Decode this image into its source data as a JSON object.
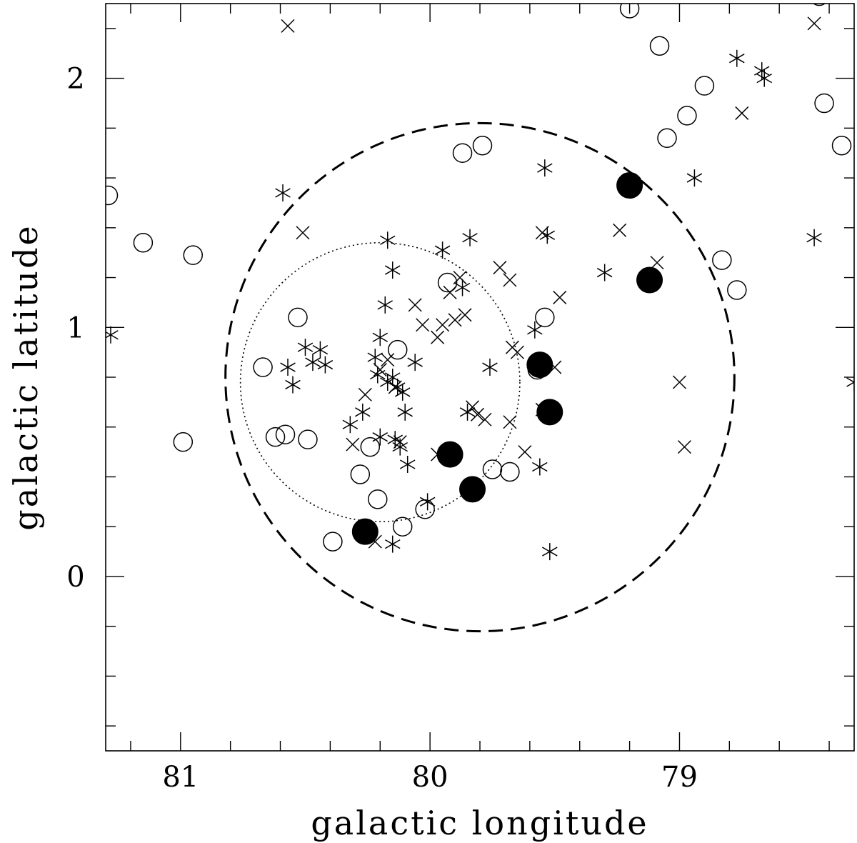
{
  "chart_data": {
    "type": "scatter",
    "xlabel": "galactic longitude",
    "ylabel": "galactic latitude",
    "xlim": [
      81.3,
      78.3
    ],
    "ylim": [
      -0.7,
      2.3
    ],
    "x_inverted": true,
    "grid": false,
    "legend": "none",
    "x_ticks": [
      {
        "value": 81,
        "label": "81"
      },
      {
        "value": 80,
        "label": "80"
      },
      {
        "value": 79,
        "label": "79"
      }
    ],
    "y_ticks": [
      {
        "value": 0,
        "label": "0"
      },
      {
        "value": 1,
        "label": "1"
      },
      {
        "value": 2,
        "label": "2"
      }
    ],
    "x_minor_step": 0.2,
    "y_minor_step": 0.2,
    "circles": [
      {
        "style": "dashed",
        "center": [
          79.8,
          0.8
        ],
        "radius_deg": 1.02
      },
      {
        "style": "dotted",
        "center": [
          80.2,
          0.78
        ],
        "radius_deg": 0.56
      }
    ],
    "series": [
      {
        "marker": "open-circle",
        "points": [
          [
            81.29,
            1.53
          ],
          [
            81.15,
            1.34
          ],
          [
            80.99,
            0.54
          ],
          [
            80.95,
            1.29
          ],
          [
            80.67,
            0.84
          ],
          [
            80.53,
            1.04
          ],
          [
            80.62,
            0.56
          ],
          [
            80.58,
            0.57
          ],
          [
            80.49,
            0.55
          ],
          [
            80.13,
            0.91
          ],
          [
            79.93,
            1.18
          ],
          [
            79.87,
            1.7
          ],
          [
            79.79,
            1.73
          ],
          [
            79.75,
            0.43
          ],
          [
            79.68,
            0.42
          ],
          [
            79.54,
            1.04
          ],
          [
            79.57,
            0.83
          ],
          [
            80.39,
            0.14
          ],
          [
            80.28,
            0.41
          ],
          [
            80.21,
            0.31
          ],
          [
            80.24,
            0.52
          ],
          [
            80.11,
            0.2
          ],
          [
            80.02,
            0.27
          ],
          [
            79.2,
            2.28
          ],
          [
            79.08,
            2.13
          ],
          [
            79.05,
            1.76
          ],
          [
            78.97,
            1.85
          ],
          [
            78.9,
            1.97
          ],
          [
            78.83,
            1.27
          ],
          [
            78.77,
            1.15
          ],
          [
            78.42,
            1.9
          ],
          [
            78.35,
            1.73
          ],
          [
            78.44,
            2.33
          ]
        ]
      },
      {
        "marker": "filled-circle",
        "points": [
          [
            79.2,
            1.57
          ],
          [
            79.12,
            1.19
          ],
          [
            79.56,
            0.85
          ],
          [
            79.52,
            0.66
          ],
          [
            79.92,
            0.49
          ],
          [
            79.83,
            0.35
          ],
          [
            80.26,
            0.18
          ]
        ]
      },
      {
        "marker": "asterisk",
        "points": [
          [
            81.28,
            0.97
          ],
          [
            80.59,
            1.54
          ],
          [
            80.57,
            0.84
          ],
          [
            80.55,
            0.77
          ],
          [
            80.5,
            0.92
          ],
          [
            80.47,
            0.86
          ],
          [
            80.44,
            0.91
          ],
          [
            80.42,
            0.85
          ],
          [
            80.32,
            0.61
          ],
          [
            80.27,
            0.66
          ],
          [
            80.22,
            0.88
          ],
          [
            80.21,
            0.81
          ],
          [
            80.2,
            0.96
          ],
          [
            80.18,
            1.09
          ],
          [
            80.17,
            0.78
          ],
          [
            80.15,
            0.8
          ],
          [
            80.2,
            0.56
          ],
          [
            80.14,
            0.55
          ],
          [
            80.13,
            0.76
          ],
          [
            80.11,
            0.74
          ],
          [
            80.17,
            1.35
          ],
          [
            80.15,
            1.23
          ],
          [
            80.1,
            0.66
          ],
          [
            80.12,
            0.52
          ],
          [
            80.09,
            0.45
          ],
          [
            80.06,
            0.86
          ],
          [
            80.01,
            0.3
          ],
          [
            79.95,
            1.31
          ],
          [
            79.84,
            1.36
          ],
          [
            79.87,
            1.16
          ],
          [
            79.76,
            0.84
          ],
          [
            79.85,
            0.66
          ],
          [
            80.15,
            0.13
          ],
          [
            79.54,
            1.64
          ],
          [
            79.53,
            1.37
          ],
          [
            79.56,
            0.44
          ],
          [
            79.58,
            0.99
          ],
          [
            79.3,
            1.22
          ],
          [
            79.52,
            0.1
          ],
          [
            78.94,
            1.6
          ],
          [
            78.77,
            2.08
          ],
          [
            78.67,
            2.03
          ],
          [
            78.66,
            2.0
          ],
          [
            78.46,
            1.36
          ],
          [
            78.3,
            0.78
          ]
        ]
      },
      {
        "marker": "cross",
        "points": [
          [
            80.57,
            2.21
          ],
          [
            80.51,
            1.38
          ],
          [
            80.26,
            0.73
          ],
          [
            80.2,
            0.83
          ],
          [
            80.17,
            0.87
          ],
          [
            80.14,
            0.76
          ],
          [
            80.06,
            1.09
          ],
          [
            80.03,
            1.01
          ],
          [
            79.97,
            0.96
          ],
          [
            79.92,
            1.14
          ],
          [
            79.95,
            1.01
          ],
          [
            79.9,
            1.03
          ],
          [
            79.86,
            1.05
          ],
          [
            79.88,
            1.2
          ],
          [
            79.83,
            0.68
          ],
          [
            79.81,
            0.65
          ],
          [
            79.78,
            0.63
          ],
          [
            79.72,
            1.24
          ],
          [
            79.68,
            1.19
          ],
          [
            79.67,
            0.92
          ],
          [
            79.68,
            0.62
          ],
          [
            79.62,
            0.5
          ],
          [
            79.55,
            0.67
          ],
          [
            79.5,
            0.84
          ],
          [
            79.48,
            1.12
          ],
          [
            79.24,
            1.39
          ],
          [
            79.09,
            1.26
          ],
          [
            79.0,
            0.78
          ],
          [
            78.98,
            0.52
          ],
          [
            78.75,
            1.86
          ],
          [
            78.46,
            2.22
          ],
          [
            79.55,
            1.38
          ],
          [
            80.31,
            0.53
          ],
          [
            79.65,
            0.9
          ],
          [
            79.97,
            0.49
          ],
          [
            80.12,
            0.54
          ],
          [
            80.22,
            0.14
          ]
        ]
      }
    ]
  }
}
